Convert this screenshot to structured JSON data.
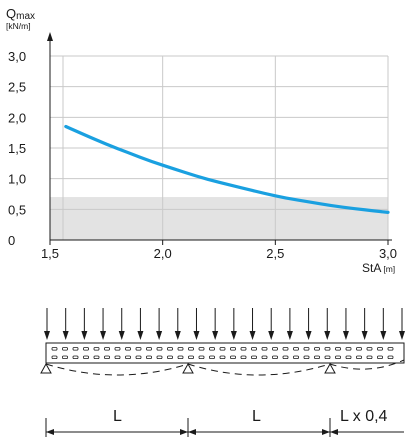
{
  "chart_data": {
    "type": "line",
    "y_axis": {
      "symbol": "Q",
      "subscript": "max",
      "unit": "[kN/m]"
    },
    "x_axis": {
      "label": "StA",
      "unit": "[m]"
    },
    "xlim": [
      1.5,
      3.0
    ],
    "ylim": [
      0,
      3.0
    ],
    "x_ticks": [
      {
        "value": 1.5,
        "label": "1,5"
      },
      {
        "value": 2.0,
        "label": "2,0"
      },
      {
        "value": 2.5,
        "label": "2,5"
      },
      {
        "value": 3.0,
        "label": "3,0"
      }
    ],
    "y_ticks": [
      {
        "value": 0,
        "label": "0"
      },
      {
        "value": 0.5,
        "label": "0,5"
      },
      {
        "value": 1.0,
        "label": "1,0"
      },
      {
        "value": 1.5,
        "label": "1,5"
      },
      {
        "value": 2.0,
        "label": "2,0"
      },
      {
        "value": 2.5,
        "label": "2,5"
      },
      {
        "value": 3.0,
        "label": "3,0"
      }
    ],
    "grid": true,
    "shaded_band": {
      "y_from": 0,
      "y_to": 0.7,
      "color": "#e3e3e3"
    },
    "series": [
      {
        "color": "#1aa0e0",
        "x": [
          1.57,
          1.65,
          1.75,
          1.85,
          1.95,
          2.05,
          2.15,
          2.25,
          2.35,
          2.45,
          2.55,
          2.65,
          2.75,
          2.85,
          2.95,
          3.0
        ],
        "y": [
          1.85,
          1.72,
          1.56,
          1.42,
          1.28,
          1.16,
          1.04,
          0.94,
          0.85,
          0.76,
          0.68,
          0.62,
          0.56,
          0.51,
          0.47,
          0.45
        ]
      }
    ]
  },
  "beam_diagram": {
    "load_arrow_count": 20,
    "spans": [
      {
        "label": "L"
      },
      {
        "label": "L"
      },
      {
        "label": "L x 0,4"
      }
    ]
  }
}
